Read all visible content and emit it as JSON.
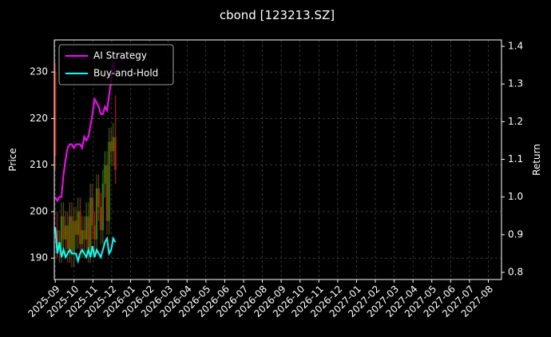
{
  "chart_data": {
    "type": "candlestick",
    "title": "cbond [123213.SZ]",
    "y_label": "Price",
    "y2_label": "Return",
    "x": [
      0.0,
      0.11,
      0.22,
      0.33,
      0.44,
      0.55,
      0.66,
      0.77,
      0.88,
      0.99,
      1.1,
      1.21,
      1.32,
      1.43,
      1.54,
      1.65,
      1.76,
      1.87,
      1.98,
      2.09,
      2.2,
      2.31,
      2.42,
      2.53,
      2.64,
      2.75,
      2.86,
      2.97,
      3.08,
      3.19
    ],
    "candles": {
      "open": [
        230,
        196,
        193,
        192,
        199,
        194,
        197,
        192,
        199,
        191,
        198,
        195,
        200,
        193,
        196,
        194,
        199,
        192,
        203,
        197,
        194,
        205,
        201,
        196,
        206,
        210,
        198,
        215,
        213,
        216
      ],
      "high": [
        232,
        200,
        196,
        202,
        202,
        200,
        200,
        202,
        202,
        201,
        201,
        203,
        203,
        199,
        199,
        202,
        202,
        206,
        206,
        200,
        208,
        208,
        204,
        209,
        213,
        213,
        218,
        218,
        219,
        225
      ],
      "low": [
        209,
        190,
        189,
        189,
        191,
        191,
        189,
        189,
        188,
        188,
        192,
        192,
        190,
        190,
        191,
        191,
        189,
        189,
        194,
        191,
        191,
        198,
        193,
        193,
        203,
        195,
        195,
        210,
        210,
        206
      ],
      "close": [
        212,
        193,
        192,
        199,
        194,
        197,
        192,
        199,
        191,
        198,
        195,
        200,
        193,
        196,
        194,
        199,
        192,
        203,
        197,
        194,
        205,
        201,
        196,
        206,
        210,
        198,
        215,
        213,
        216,
        209
      ],
      "up_color": "#0a8a0a",
      "down_color": "#c81e00"
    },
    "series": [
      {
        "name": "AI Strategy",
        "color": "#ff00ff",
        "axis": "y2",
        "values": [
          1.0,
          0.99,
          1.0,
          1.0,
          1.06,
          1.1,
          1.13,
          1.14,
          1.14,
          1.13,
          1.14,
          1.14,
          1.14,
          1.13,
          1.16,
          1.15,
          1.16,
          1.19,
          1.22,
          1.26,
          1.25,
          1.24,
          1.22,
          1.22,
          1.24,
          1.23,
          1.27,
          1.31,
          1.36,
          1.33
        ]
      },
      {
        "name": "Buy-and-Hold",
        "color": "#00ffff",
        "axis": "y2",
        "values": [
          0.92,
          0.85,
          0.88,
          0.84,
          0.86,
          0.84,
          0.85,
          0.86,
          0.85,
          0.85,
          0.85,
          0.83,
          0.85,
          0.86,
          0.85,
          0.84,
          0.86,
          0.84,
          0.87,
          0.84,
          0.86,
          0.85,
          0.84,
          0.86,
          0.88,
          0.89,
          0.85,
          0.86,
          0.89,
          0.88
        ]
      }
    ],
    "xlim": [
      -0.05,
      23.7
    ],
    "xticks": [
      {
        "value": 0,
        "label": "2025-09"
      },
      {
        "value": 1,
        "label": "2025-10"
      },
      {
        "value": 2,
        "label": "2025-11"
      },
      {
        "value": 3,
        "label": "2025-12"
      },
      {
        "value": 4,
        "label": "2026-01"
      },
      {
        "value": 5,
        "label": "2026-02"
      },
      {
        "value": 6,
        "label": "2026-03"
      },
      {
        "value": 7,
        "label": "2026-04"
      },
      {
        "value": 8,
        "label": "2026-05"
      },
      {
        "value": 9,
        "label": "2026-06"
      },
      {
        "value": 10,
        "label": "2026-07"
      },
      {
        "value": 11,
        "label": "2026-08"
      },
      {
        "value": 12,
        "label": "2026-09"
      },
      {
        "value": 13,
        "label": "2026-10"
      },
      {
        "value": 14,
        "label": "2026-11"
      },
      {
        "value": 15,
        "label": "2026-12"
      },
      {
        "value": 16,
        "label": "2027-01"
      },
      {
        "value": 17,
        "label": "2027-02"
      },
      {
        "value": 18,
        "label": "2027-03"
      },
      {
        "value": 19,
        "label": "2027-04"
      },
      {
        "value": 20,
        "label": "2027-05"
      },
      {
        "value": 21,
        "label": "2027-06"
      },
      {
        "value": 22,
        "label": "2027-07"
      },
      {
        "value": 23,
        "label": "2027-08"
      }
    ],
    "ylim": [
      185.4,
      236.9
    ],
    "yticks": [
      190,
      200,
      210,
      220,
      230
    ],
    "y2lim": [
      0.781,
      1.417
    ],
    "y2ticks": [
      0.8,
      0.9,
      {
        "value": 1,
        "label": "1.0"
      },
      1.1,
      1.2,
      1.3,
      1.4
    ],
    "grid": true,
    "legend": "upper left"
  }
}
